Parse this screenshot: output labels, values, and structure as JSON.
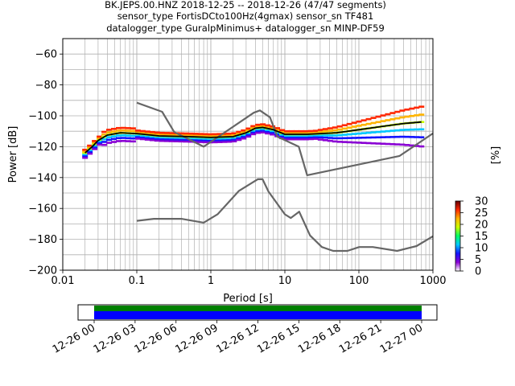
{
  "title": {
    "line1": "BK.JEPS.00.HNZ   2018-12-25 -- 2018-12-26  (47/47 segments)",
    "line2": "sensor_type FortisDCto100Hz(4gmax) sensor_sn TF481",
    "line3": "datalogger_type GuralpMinimus+ datalogger_sn MINP-DF59"
  },
  "chart_data": {
    "type": "line",
    "xlabel": "Period [s]",
    "ylabel": "Power [dB]",
    "xscale": "log",
    "xlim": [
      0.01,
      1000
    ],
    "ylim": [
      -200,
      -50
    ],
    "grid": true,
    "x_ticks": [
      {
        "value": 0.01,
        "label": "0.01"
      },
      {
        "value": 0.1,
        "label": "0.1"
      },
      {
        "value": 1,
        "label": "1"
      },
      {
        "value": 10,
        "label": "10"
      },
      {
        "value": 100,
        "label": "100"
      },
      {
        "value": 1000,
        "label": "1000"
      }
    ],
    "y_ticks": [
      -60,
      -80,
      -100,
      -120,
      -140,
      -160,
      -180,
      -200
    ],
    "y_tick_labels": [
      "−60",
      "−80",
      "−100",
      "−120",
      "−140",
      "−160",
      "−180",
      "−200"
    ],
    "series": [
      {
        "role": "high-noise-model",
        "color": "#666666",
        "points": [
          [
            0.1,
            -91.5
          ],
          [
            0.22,
            -97.4
          ],
          [
            0.32,
            -110.5
          ],
          [
            0.8,
            -120
          ],
          [
            3.8,
            -98
          ],
          [
            4.6,
            -96.5
          ],
          [
            6.3,
            -101
          ],
          [
            7.9,
            -113.5
          ],
          [
            15.4,
            -120
          ],
          [
            20,
            -138.5
          ],
          [
            354.8,
            -126
          ],
          [
            1000,
            -111.4
          ]
        ]
      },
      {
        "role": "low-noise-model",
        "color": "#666666",
        "points": [
          [
            0.1,
            -168
          ],
          [
            0.17,
            -166.7
          ],
          [
            0.4,
            -166.7
          ],
          [
            0.8,
            -169.2
          ],
          [
            1.24,
            -163.7
          ],
          [
            2.4,
            -148.6
          ],
          [
            4.3,
            -141.1
          ],
          [
            5,
            -141.1
          ],
          [
            6,
            -149
          ],
          [
            10,
            -163.8
          ],
          [
            12,
            -166.2
          ],
          [
            15.6,
            -162.1
          ],
          [
            21.9,
            -177.5
          ],
          [
            31.6,
            -185
          ],
          [
            45,
            -187.5
          ],
          [
            70,
            -187.5
          ],
          [
            101,
            -185
          ],
          [
            154,
            -185
          ],
          [
            328,
            -187.5
          ],
          [
            600,
            -184.4
          ],
          [
            1000,
            -178
          ]
        ]
      },
      {
        "role": "median-psd",
        "color": "#000000",
        "points": [
          [
            0.02,
            -124
          ],
          [
            0.025,
            -120
          ],
          [
            0.03,
            -116
          ],
          [
            0.04,
            -112.5
          ],
          [
            0.06,
            -111
          ],
          [
            0.1,
            -111.5
          ],
          [
            0.2,
            -113
          ],
          [
            0.5,
            -113.5
          ],
          [
            1,
            -114
          ],
          [
            2,
            -113.5
          ],
          [
            3,
            -111
          ],
          [
            4,
            -108
          ],
          [
            5,
            -107.5
          ],
          [
            7,
            -109
          ],
          [
            10,
            -112
          ],
          [
            20,
            -112
          ],
          [
            50,
            -111
          ],
          [
            100,
            -109
          ],
          [
            200,
            -107
          ],
          [
            400,
            -105
          ],
          [
            700,
            -104
          ]
        ]
      }
    ],
    "colorbar": {
      "label": "[%]",
      "ticks": [
        "0",
        "5",
        "10",
        "15",
        "20",
        "25",
        "30"
      ],
      "range": [
        0,
        30
      ],
      "colormap": [
        "#ffffff",
        "#8a00d4",
        "#1414ff",
        "#00c8ff",
        "#00ff64",
        "#c8ff00",
        "#ffb400",
        "#ff2800",
        "#640000"
      ]
    },
    "timeline": {
      "ticks": [
        "12-26 00",
        "12-26 03",
        "12-26 06",
        "12-26 09",
        "12-26 12",
        "12-26 15",
        "12-26 18",
        "12-26 21",
        "12-27 00"
      ],
      "bar_colors": {
        "top": "#008000",
        "bottom": "#0000ff"
      }
    }
  }
}
